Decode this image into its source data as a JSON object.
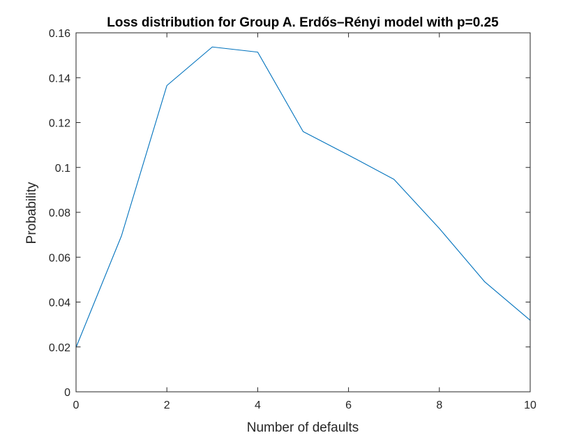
{
  "chart_data": {
    "type": "line",
    "title": "Loss distribution for Group A. Erdős–Rényi model with p=0.25",
    "xlabel": "Number of defaults",
    "ylabel": "Probability",
    "xlim": [
      0,
      10
    ],
    "ylim": [
      0,
      0.16
    ],
    "xticks": [
      0,
      2,
      4,
      6,
      8,
      10
    ],
    "xtick_labels": [
      "0",
      "2",
      "4",
      "6",
      "8",
      "10"
    ],
    "yticks": [
      0,
      0.02,
      0.04,
      0.06,
      0.08,
      0.1,
      0.12,
      0.14,
      0.16
    ],
    "ytick_labels": [
      "0",
      "0.02",
      "0.04",
      "0.06",
      "0.08",
      "0.1",
      "0.12",
      "0.14",
      "0.16"
    ],
    "grid": false,
    "line_color": "#0072BD",
    "series": [
      {
        "x": [
          0,
          1,
          2,
          3,
          4,
          5,
          6,
          7,
          8,
          9,
          10
        ],
        "values": [
          0.0198,
          0.0695,
          0.1365,
          0.1537,
          0.1514,
          0.116,
          0.1055,
          0.0947,
          0.0728,
          0.049,
          0.0319
        ]
      }
    ]
  }
}
